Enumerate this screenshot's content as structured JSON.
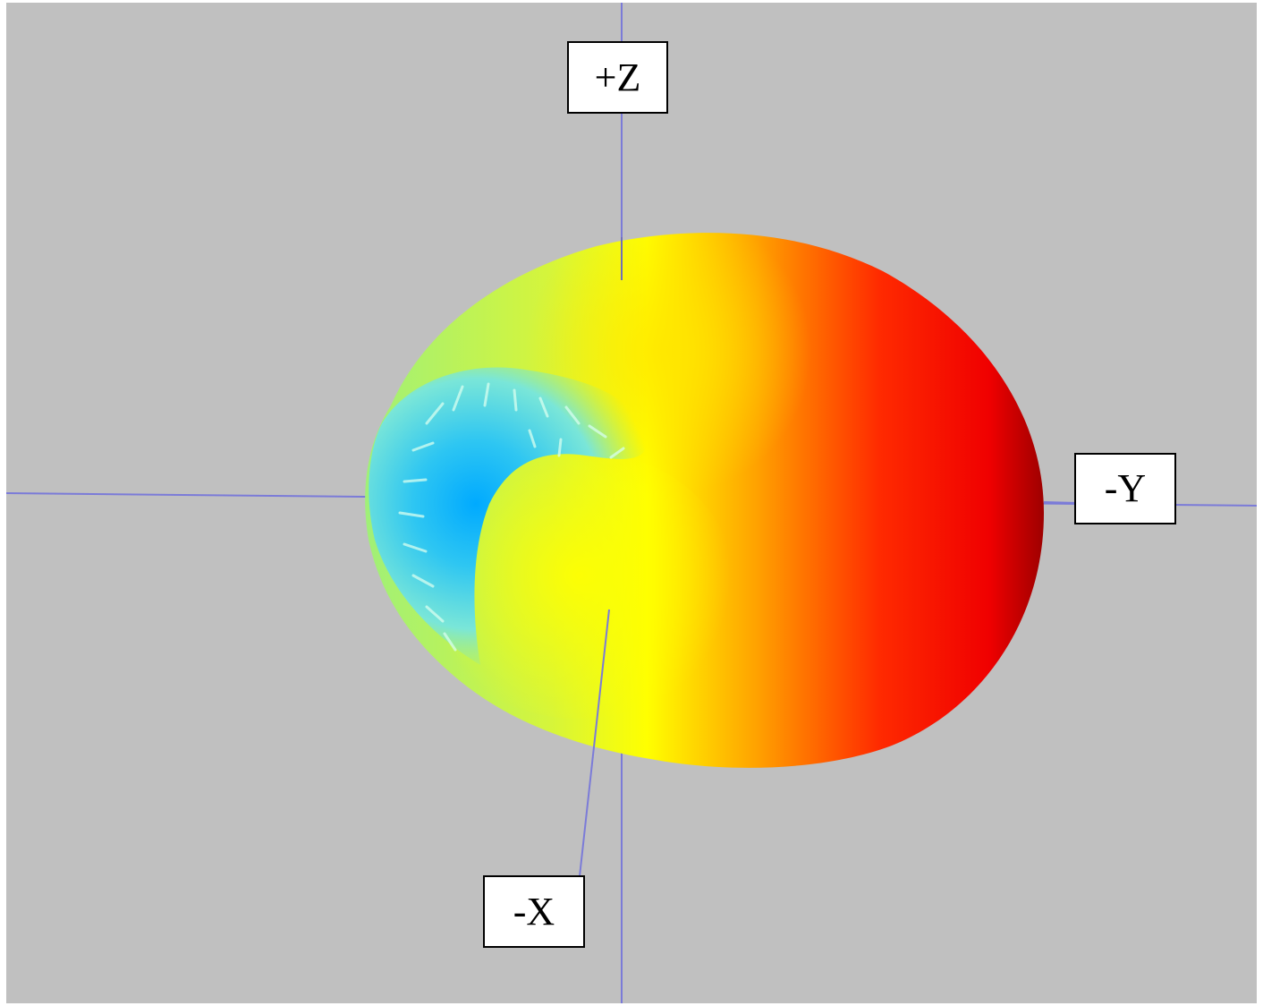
{
  "viewer": {
    "background": "#c0c0c0",
    "axis_color": "#7b7bd8"
  },
  "axes": {
    "plus_z": "+Z",
    "minus_y": "-Y",
    "minus_x": "-X"
  },
  "pattern": {
    "color_scale": [
      "#00aaff",
      "#4fd8f0",
      "#9ef07a",
      "#ffff00",
      "#ffa000",
      "#ff1a00",
      "#b30000"
    ]
  }
}
